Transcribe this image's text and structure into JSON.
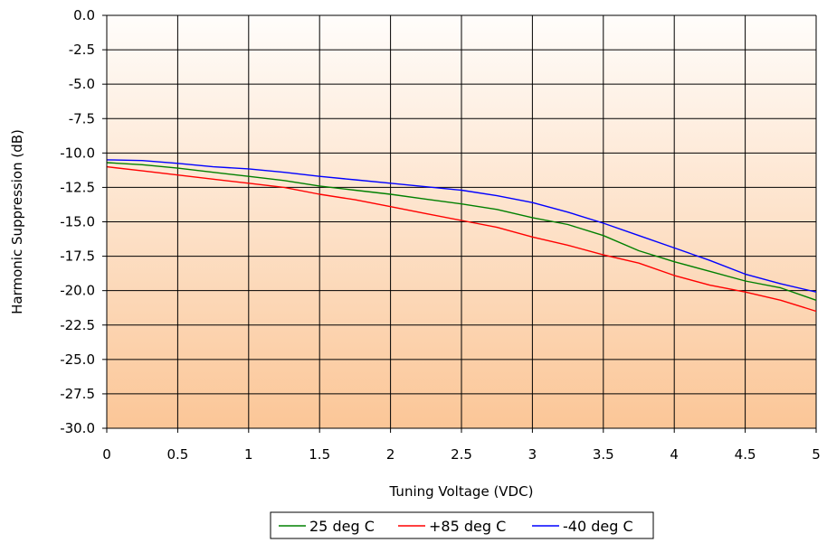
{
  "chart_data": {
    "type": "line",
    "title": "",
    "xlabel": "Tuning Voltage (VDC)",
    "ylabel": "Harmonic Suppression (dB)",
    "xlim": [
      0,
      5
    ],
    "ylim": [
      -30,
      0
    ],
    "x_ticks": [
      "0",
      "0.5",
      "1",
      "1.5",
      "2",
      "2.5",
      "3",
      "3.5",
      "4",
      "4.5",
      "5"
    ],
    "y_ticks": [
      "0.0",
      "-2.5",
      "-5.0",
      "-7.5",
      "-10.0",
      "-12.5",
      "-15.0",
      "-17.5",
      "-20.0",
      "-22.5",
      "-25.0",
      "-27.5",
      "-30.0"
    ],
    "grid": true,
    "legend_position": "bottom-center",
    "background_gradient": [
      "#fffdfb",
      "#fbc697"
    ],
    "x": [
      0,
      0.25,
      0.5,
      0.75,
      1,
      1.25,
      1.5,
      1.75,
      2,
      2.25,
      2.5,
      2.75,
      3,
      3.25,
      3.5,
      3.75,
      4,
      4.25,
      4.5,
      4.75,
      5
    ],
    "series": [
      {
        "name": "25 deg C",
        "color": "#008000",
        "values": [
          -10.7,
          -10.85,
          -11.1,
          -11.4,
          -11.7,
          -12.0,
          -12.4,
          -12.7,
          -13.0,
          -13.35,
          -13.7,
          -14.1,
          -14.7,
          -15.2,
          -16.0,
          -17.1,
          -17.9,
          -18.6,
          -19.3,
          -19.8,
          -20.7
        ]
      },
      {
        "name": "+85 deg C",
        "color": "#ff0000",
        "values": [
          -11.0,
          -11.3,
          -11.6,
          -11.9,
          -12.2,
          -12.5,
          -13.0,
          -13.4,
          -13.9,
          -14.4,
          -14.9,
          -15.4,
          -16.1,
          -16.7,
          -17.4,
          -18.0,
          -18.9,
          -19.6,
          -20.1,
          -20.7,
          -21.5
        ]
      },
      {
        "name": "-40 deg C",
        "color": "#0000ff",
        "values": [
          -10.5,
          -10.55,
          -10.75,
          -11.0,
          -11.15,
          -11.4,
          -11.7,
          -11.95,
          -12.2,
          -12.45,
          -12.7,
          -13.1,
          -13.6,
          -14.3,
          -15.1,
          -16.0,
          -16.9,
          -17.8,
          -18.8,
          -19.5,
          -20.1
        ]
      }
    ]
  }
}
